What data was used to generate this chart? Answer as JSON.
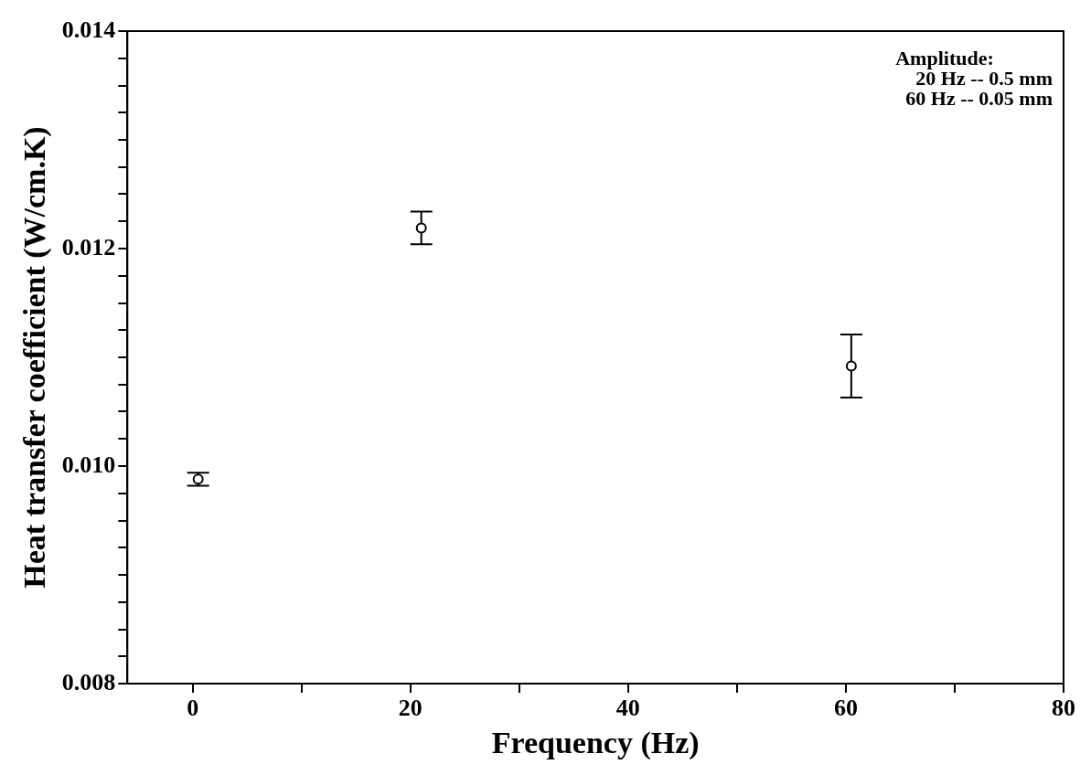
{
  "chart_data": {
    "type": "scatter",
    "xlabel": "Frequency (Hz)",
    "ylabel": "Heat transfer coefficient (W/cm.K)",
    "annotations": [
      "Amplitude:",
      "20 Hz -- 0.5 mm",
      "60 Hz -- 0.05 mm"
    ],
    "x": [
      0.5,
      21,
      60.5
    ],
    "series": [
      {
        "color": "#000000",
        "values": [
          0.00988,
          0.01219,
          0.01092
        ],
        "errors": [
          6e-05,
          0.00015,
          0.00029
        ]
      }
    ],
    "marker": "circle",
    "grid": false,
    "legend": false,
    "xlim": [
      -6,
      80
    ],
    "xticks": [
      0,
      {
        "value": 10,
        "label": null
      },
      20,
      {
        "value": 30,
        "label": null
      },
      40,
      {
        "value": 50,
        "label": null
      },
      60,
      {
        "value": 70,
        "label": null
      },
      80
    ],
    "ylim": [
      0.008,
      0.014
    ],
    "yticks": [
      {
        "value": 0.008,
        "label": "0.008"
      },
      {
        "value": 0.00825,
        "label": null
      },
      {
        "value": 0.0085,
        "label": null
      },
      {
        "value": 0.00875,
        "label": null
      },
      {
        "value": 0.009,
        "label": null
      },
      {
        "value": 0.00925,
        "label": null
      },
      {
        "value": 0.0095,
        "label": null
      },
      {
        "value": 0.00975,
        "label": null
      },
      {
        "value": 0.01,
        "label": "0.010"
      },
      {
        "value": 0.01025,
        "label": null
      },
      {
        "value": 0.0105,
        "label": null
      },
      {
        "value": 0.01075,
        "label": null
      },
      {
        "value": 0.011,
        "label": null
      },
      {
        "value": 0.01125,
        "label": null
      },
      {
        "value": 0.0115,
        "label": null
      },
      {
        "value": 0.01175,
        "label": null
      },
      {
        "value": 0.012,
        "label": "0.012"
      },
      {
        "value": 0.01225,
        "label": null
      },
      {
        "value": 0.0125,
        "label": null
      },
      {
        "value": 0.01275,
        "label": null
      },
      {
        "value": 0.013,
        "label": null
      },
      {
        "value": 0.01325,
        "label": null
      },
      {
        "value": 0.0135,
        "label": null
      },
      {
        "value": 0.01375,
        "label": null
      },
      {
        "value": 0.014,
        "label": "0.014"
      }
    ]
  }
}
